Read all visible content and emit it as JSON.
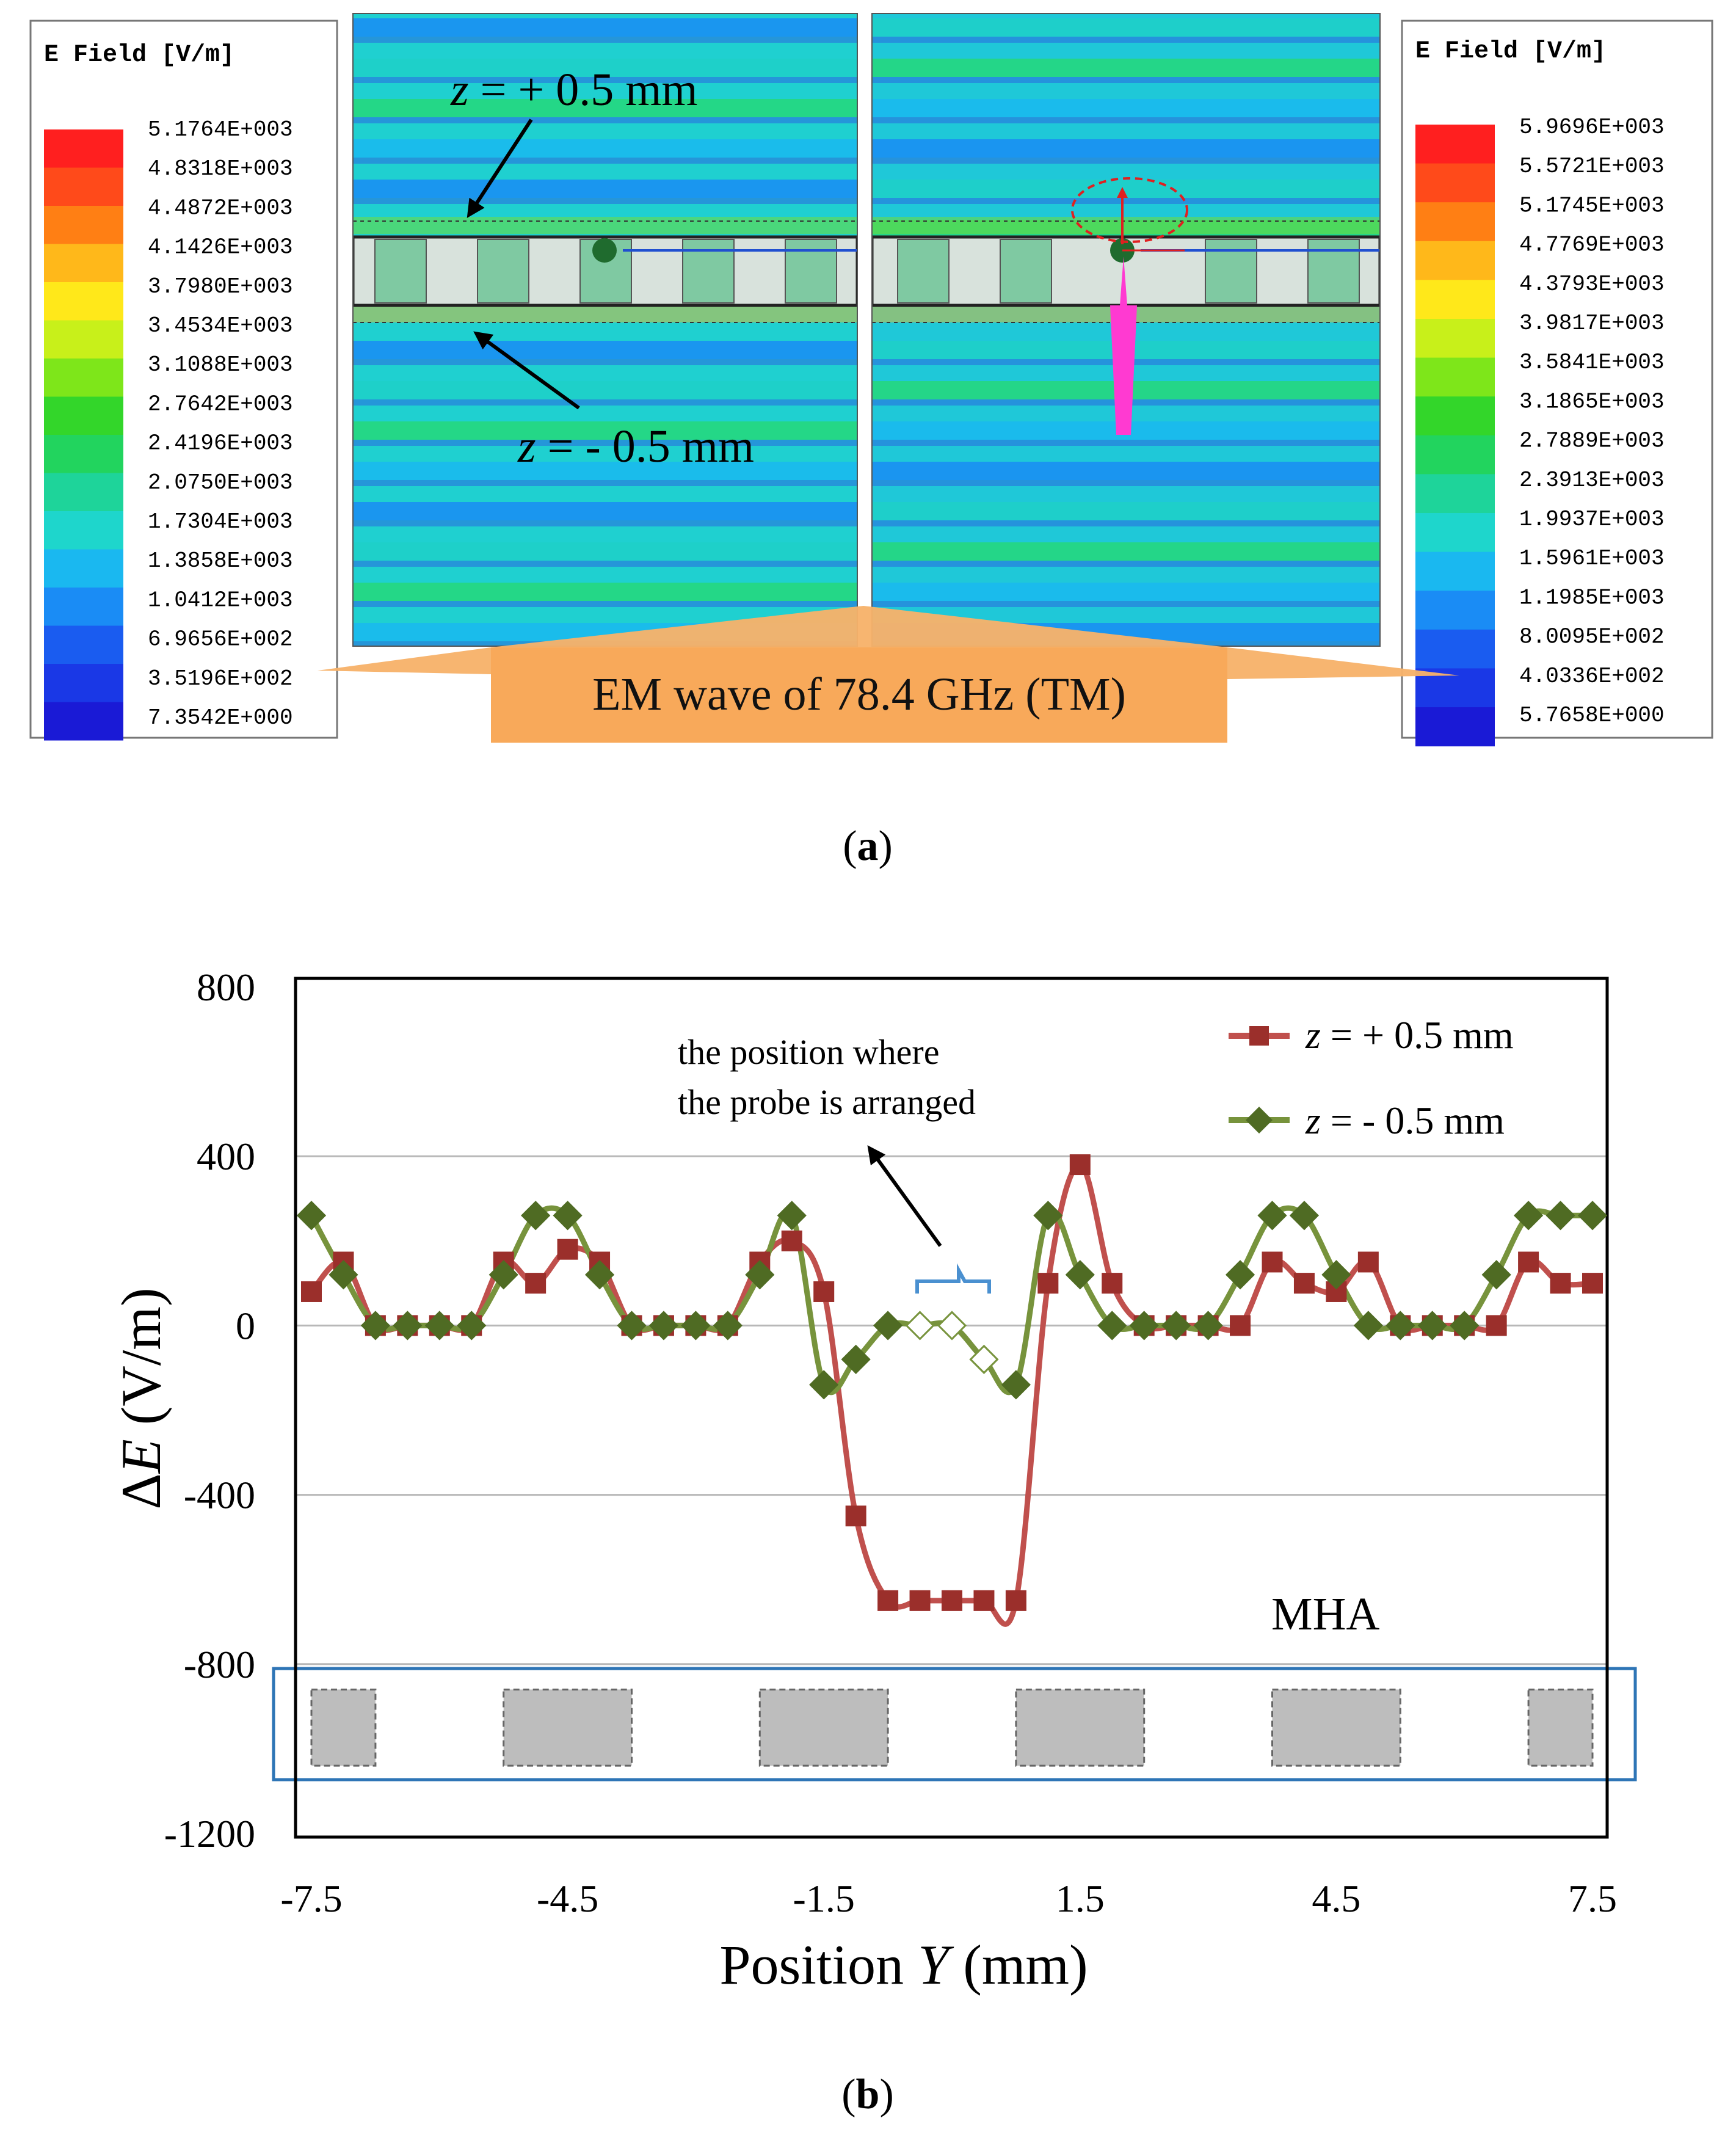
{
  "panel_a": {
    "caption": "(a)",
    "left_legend": {
      "title": "E Field [V/m]",
      "values": [
        "5.1764E+003",
        "4.8318E+003",
        "4.4872E+003",
        "4.1426E+003",
        "3.7980E+003",
        "3.4534E+003",
        "3.1088E+003",
        "2.7642E+003",
        "2.4196E+003",
        "2.0750E+003",
        "1.7304E+003",
        "1.3858E+003",
        "1.0412E+003",
        "6.9656E+002",
        "3.5196E+002",
        "7.3542E+000"
      ]
    },
    "right_legend": {
      "title": "E Field [V/m]",
      "values": [
        "5.9696E+003",
        "5.5721E+003",
        "5.1745E+003",
        "4.7769E+003",
        "4.3793E+003",
        "3.9817E+003",
        "3.5841E+003",
        "3.1865E+003",
        "2.7889E+003",
        "2.3913E+003",
        "1.9937E+003",
        "1.5961E+003",
        "1.1985E+003",
        "8.0095E+002",
        "4.0336E+002",
        "5.7658E+000"
      ]
    },
    "colormap": [
      "#ff1f1f",
      "#ff4a1a",
      "#ff7f14",
      "#ffb81a",
      "#ffe81a",
      "#c8f01a",
      "#7ee61a",
      "#33d62a",
      "#22d45e",
      "#1ed49a",
      "#1ed6cc",
      "#1ab8f0",
      "#1a8cf5",
      "#1a5cf0",
      "#1a38e6",
      "#1a1ad6"
    ],
    "label_top": {
      "var": "z",
      "text": " = + 0.5 mm"
    },
    "label_bottom": {
      "var": "z",
      "text": " = - 0.5 mm"
    },
    "banner": "EM wave of 78.4 GHz (TM)"
  },
  "panel_b": {
    "caption": "(b)",
    "annotation_line1": "the position where",
    "annotation_line2": "the probe is arranged",
    "mha_label": "MHA"
  },
  "chart_data": {
    "type": "line",
    "title": "",
    "xlabel": {
      "prefix": "Position ",
      "var": "Y",
      "suffix": " (mm)"
    },
    "ylabel": {
      "prefix": "Δ",
      "var": "E",
      "suffix": " (V/m)"
    },
    "xlim": [
      -7.5,
      7.5
    ],
    "ylim": [
      -1200,
      800
    ],
    "xticks": [
      "-7.5",
      "-4.5",
      "-1.5",
      "1.5",
      "4.5",
      "7.5"
    ],
    "yticks": [
      "800",
      "400",
      "0",
      "-400",
      "-800",
      "-1200"
    ],
    "grid": "horizontal",
    "legend_placement": "top-right",
    "series": [
      {
        "name_var": "z",
        "name_text": " = + 0.5 mm",
        "color": "#c0504d",
        "marker": "square",
        "x": [
          -7.5,
          -7.125,
          -6.75,
          -6.375,
          -6,
          -5.625,
          -5.25,
          -4.875,
          -4.5,
          -4.125,
          -3.75,
          -3.375,
          -3,
          -2.625,
          -2.25,
          -1.875,
          -1.5,
          -1.125,
          -0.75,
          -0.375,
          0,
          0.375,
          0.75,
          1.125,
          1.5,
          1.875,
          2.25,
          2.625,
          3,
          3.375,
          3.75,
          4.125,
          4.5,
          4.875,
          5.25,
          5.625,
          6,
          6.375,
          6.75,
          7.125,
          7.5
        ],
        "y": [
          80,
          150,
          0,
          0,
          0,
          0,
          150,
          100,
          180,
          150,
          0,
          0,
          0,
          0,
          150,
          200,
          80,
          -450,
          -650,
          -650,
          -650,
          -650,
          -650,
          100,
          380,
          100,
          0,
          0,
          0,
          0,
          150,
          100,
          80,
          150,
          0,
          0,
          0,
          0,
          150,
          100,
          100
        ]
      },
      {
        "name_var": "z",
        "name_text": " = - 0.5 mm",
        "color": "#77933c",
        "marker": "diamond",
        "x": [
          -7.5,
          -7.125,
          -6.75,
          -6.375,
          -6,
          -5.625,
          -5.25,
          -4.875,
          -4.5,
          -4.125,
          -3.75,
          -3.375,
          -3,
          -2.625,
          -2.25,
          -1.875,
          -1.5,
          -1.125,
          -0.75,
          -0.375,
          0,
          0.375,
          0.75,
          1.125,
          1.5,
          1.875,
          2.25,
          2.625,
          3,
          3.375,
          3.75,
          4.125,
          4.5,
          4.875,
          5.25,
          5.625,
          6,
          6.375,
          6.75,
          7.125,
          7.5
        ],
        "y": [
          260,
          120,
          0,
          0,
          0,
          0,
          120,
          260,
          260,
          120,
          0,
          0,
          0,
          0,
          120,
          260,
          -140,
          -80,
          0,
          0,
          0,
          -80,
          -140,
          260,
          120,
          0,
          0,
          0,
          0,
          120,
          260,
          260,
          120,
          0,
          0,
          0,
          0,
          120,
          260,
          260,
          260
        ]
      }
    ],
    "hollow_points": [
      -0.375,
      0,
      0.375
    ],
    "mha_blocks": [
      [
        -7.5,
        -6.75
      ],
      [
        -5.25,
        -3.75
      ],
      [
        -2.25,
        -0.75
      ],
      [
        0.75,
        2.25
      ],
      [
        3.75,
        5.25
      ],
      [
        6.75,
        7.5
      ]
    ]
  }
}
